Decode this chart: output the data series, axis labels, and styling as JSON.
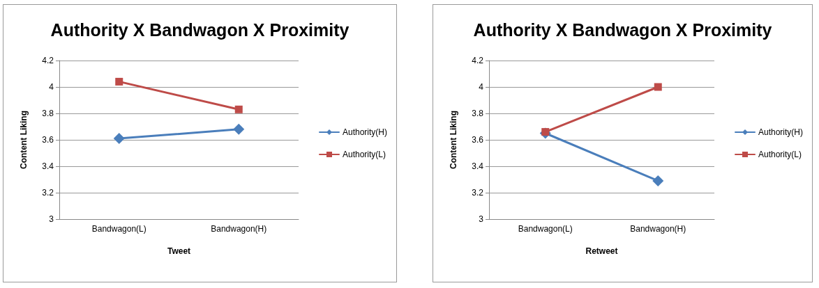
{
  "chart_data": [
    {
      "type": "line",
      "title": "Authority X Bandwagon X Proximity",
      "xlabel": "Tweet",
      "ylabel": "Content Liking",
      "categories": [
        "Bandwagon(L)",
        "Bandwagon(H)"
      ],
      "series": [
        {
          "name": "Authority(H)",
          "color": "#4a7ebb",
          "marker": "diamond",
          "values": [
            3.61,
            3.68
          ]
        },
        {
          "name": "Authority(L)",
          "color": "#be4b48",
          "marker": "square",
          "values": [
            4.04,
            3.83
          ]
        }
      ],
      "ylim": [
        3,
        4.2
      ],
      "yticks": [
        3,
        3.2,
        3.4,
        3.6,
        3.8,
        4,
        4.2
      ],
      "grid": "y",
      "legend": "right"
    },
    {
      "type": "line",
      "title": "Authority X Bandwagon X Proximity",
      "xlabel": "Retweet",
      "ylabel": "Content Liking",
      "categories": [
        "Bandwagon(L)",
        "Bandwagon(H)"
      ],
      "series": [
        {
          "name": "Authority(H)",
          "color": "#4a7ebb",
          "marker": "diamond",
          "values": [
            3.65,
            3.29
          ]
        },
        {
          "name": "Authority(L)",
          "color": "#be4b48",
          "marker": "square",
          "values": [
            3.66,
            4.0
          ]
        }
      ],
      "ylim": [
        3,
        4.2
      ],
      "yticks": [
        3,
        3.2,
        3.4,
        3.6,
        3.8,
        4,
        4.2
      ],
      "grid": "y",
      "legend": "right"
    }
  ]
}
